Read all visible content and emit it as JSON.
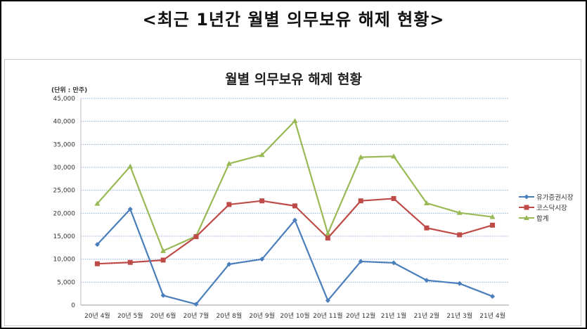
{
  "page": {
    "title": "<최근 1년간 월별 의무보유 해제 현황>"
  },
  "chart": {
    "title": "월별 의무보유 해제 현황",
    "unit": "(단위 : 만주)"
  },
  "chart_data": {
    "type": "line",
    "title": "월별 의무보유 해제 현황",
    "xlabel": "",
    "ylabel": "(단위 : 만주)",
    "ylim": [
      0,
      45000
    ],
    "yticks": [
      "0",
      "5,000",
      "10,000",
      "15,000",
      "20,000",
      "25,000",
      "30,000",
      "35,000",
      "40,000",
      "45,000"
    ],
    "grid": true,
    "legend_position": "right",
    "categories": [
      "20년 4월",
      "20년 5월",
      "20년 6월",
      "20년 7월",
      "20년 8월",
      "20년 9월",
      "20년 10월",
      "20년 11월",
      "20년 12월",
      "21년 1월",
      "21년 2월",
      "21년 3월",
      "21년 4월"
    ],
    "series": [
      {
        "name": "유가증권시장",
        "color": "#4a7ebb",
        "marker": "diamond",
        "values": [
          13200,
          20900,
          2100,
          200,
          8900,
          10000,
          18500,
          1000,
          9500,
          9200,
          5400,
          4700,
          1900
        ]
      },
      {
        "name": "코스닥시장",
        "color": "#be4b48",
        "marker": "square",
        "values": [
          9000,
          9300,
          9800,
          14900,
          21900,
          22700,
          21600,
          14600,
          22700,
          23200,
          16800,
          15300,
          17400
        ]
      },
      {
        "name": "합계",
        "color": "#98b954",
        "marker": "triangle",
        "values": [
          22100,
          30200,
          11800,
          15000,
          30800,
          32700,
          40100,
          15600,
          32200,
          32400,
          22200,
          20100,
          19200
        ]
      }
    ]
  }
}
